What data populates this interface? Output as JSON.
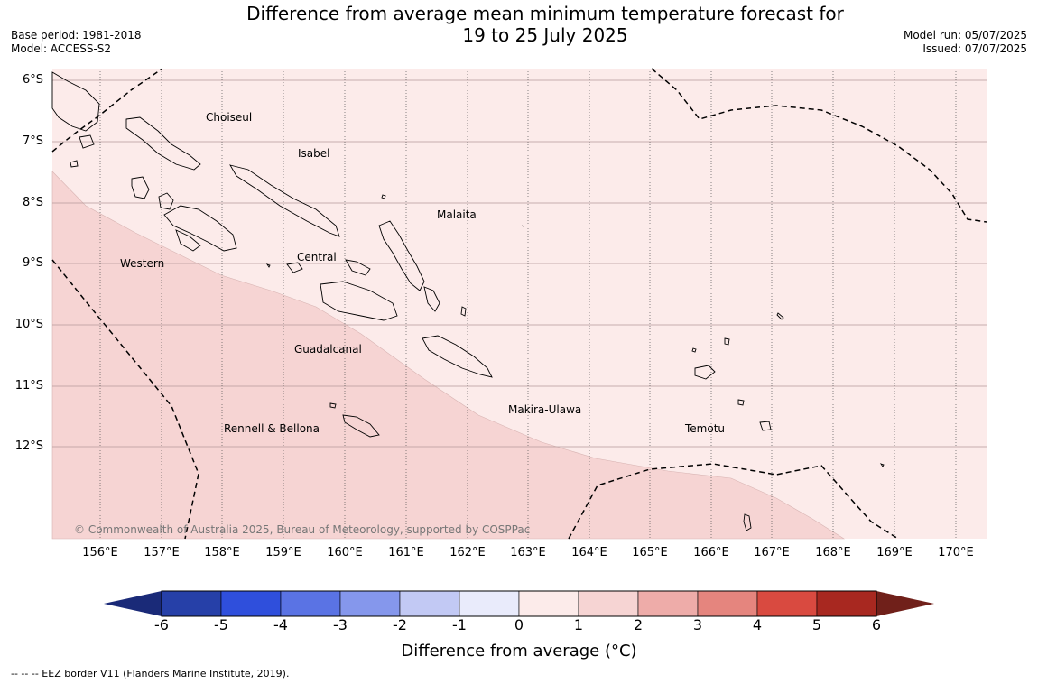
{
  "title_line1": "Difference from average mean minimum temperature forecast for",
  "title_line2": "19 to 25 July 2025",
  "base_period": "Base period: 1981-2018",
  "model": "Model: ACCESS-S2",
  "model_run": "Model run: 05/07/2025",
  "issued": "Issued: 07/07/2025",
  "lat_labels": [
    "6°S",
    "7°S",
    "8°S",
    "9°S",
    "10°S",
    "11°S",
    "12°S"
  ],
  "lon_labels": [
    "156°E",
    "157°E",
    "158°E",
    "159°E",
    "160°E",
    "161°E",
    "162°E",
    "163°E",
    "164°E",
    "165°E",
    "166°E",
    "167°E",
    "168°E",
    "169°E",
    "170°E"
  ],
  "places": {
    "choiseul": "Choiseul",
    "isabel": "Isabel",
    "malaita": "Malaita",
    "western": "Western",
    "central": "Central",
    "guadalcanal": "Guadalcanal",
    "makira_ulawa": "Makira-Ulawa",
    "temotu": "Temotu",
    "rennell_bellona": "Rennell & Bellona"
  },
  "copyright": "© Commonwealth of Australia 2025, Bureau of Meteorology, supported by COSPPac",
  "colorbar": {
    "ticks": [
      "-6",
      "-5",
      "-4",
      "-3",
      "-2",
      "-1",
      "0",
      "1",
      "2",
      "3",
      "4",
      "5",
      "6"
    ],
    "colors": [
      "#2640a8",
      "#2f4fdc",
      "#5a73e4",
      "#8597ec",
      "#c2c9f4",
      "#e9ebfb",
      "#fcebea",
      "#f6d4d3",
      "#eeaca9",
      "#e5857e",
      "#d94a40",
      "#a82820"
    ],
    "under_color": "#1a2a78",
    "over_color": "#70201a",
    "label": "Difference from average (°C)"
  },
  "shading": {
    "zone_0_to_1": "#fcebea",
    "zone_1_to_2": "#f6d4d3"
  },
  "footnote": "--  --  -- EEZ border V11 (Flanders Marine Institute, 2019)."
}
